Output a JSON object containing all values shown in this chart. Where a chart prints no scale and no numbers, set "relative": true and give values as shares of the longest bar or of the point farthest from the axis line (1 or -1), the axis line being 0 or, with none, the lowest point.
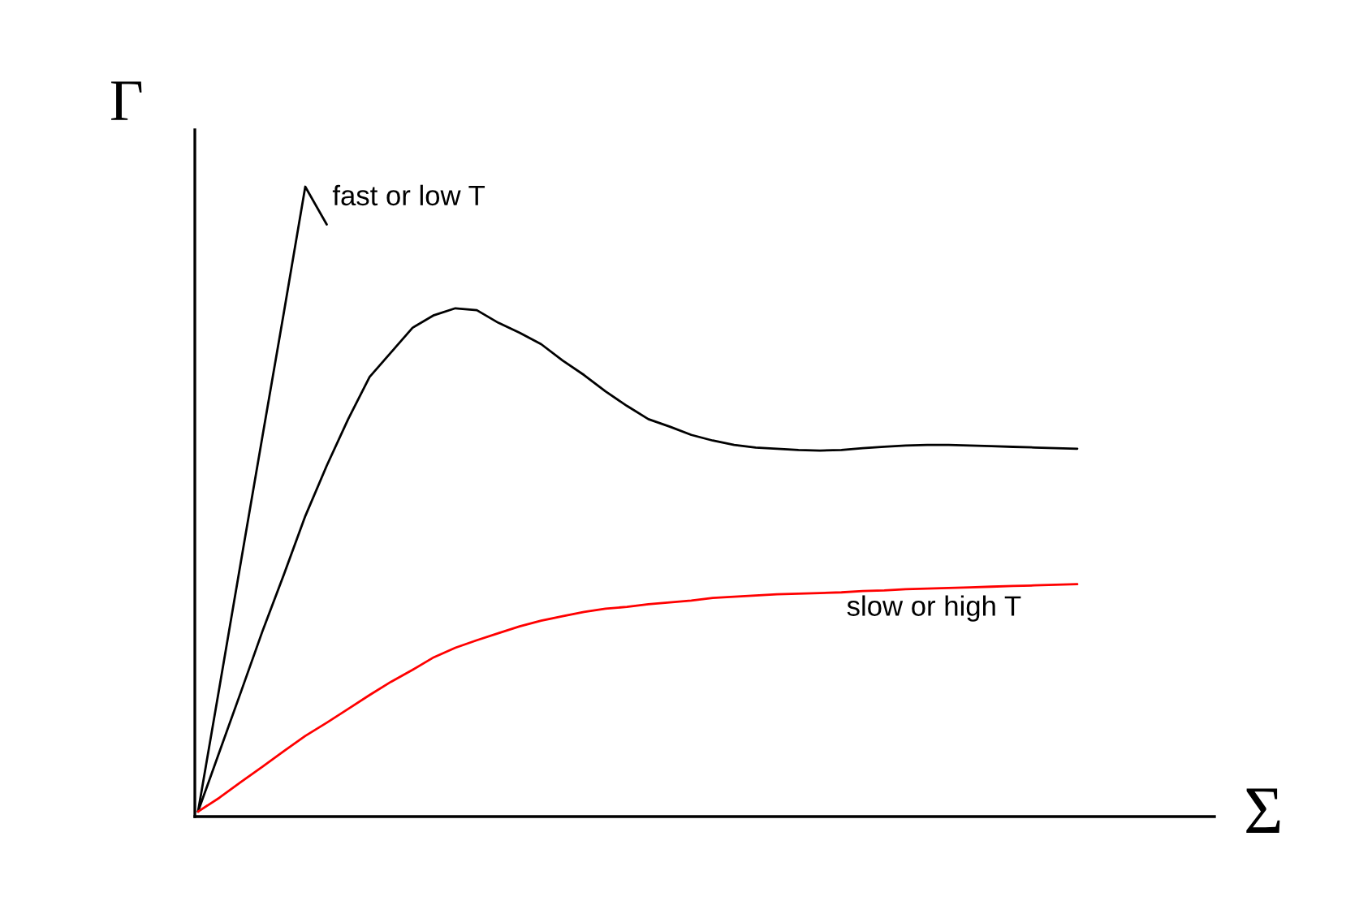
{
  "chart_data": {
    "type": "line",
    "relative": true,
    "xlabel": "Σ",
    "ylabel": "Γ",
    "categories": [
      null,
      null,
      null,
      null,
      null,
      null,
      null,
      null,
      null,
      null,
      null,
      null,
      null,
      null,
      null,
      null,
      null,
      null,
      null,
      null,
      null,
      null,
      null,
      null,
      null,
      null,
      null,
      null,
      null,
      null,
      null,
      null,
      null,
      null,
      null,
      null,
      null,
      null,
      null,
      null,
      null,
      null
    ],
    "series": [
      {
        "name": "fast or low T",
        "color": "#000000",
        "values": [
          0.008,
          0.206,
          0.405,
          0.603,
          0.8,
          1.0,
          0.94,
          null,
          null,
          null,
          null,
          null,
          null,
          null,
          null,
          null,
          null,
          null,
          null,
          null,
          null,
          null,
          null,
          null,
          null,
          null,
          null,
          null,
          null,
          null,
          null,
          null,
          null,
          null,
          null,
          null,
          null,
          null,
          null,
          null,
          null,
          null
        ]
      },
      {
        "color": "#000000",
        "values": [
          0.008,
          0.103,
          0.198,
          0.294,
          0.384,
          0.477,
          0.557,
          0.631,
          0.698,
          0.737,
          0.776,
          0.796,
          0.807,
          0.804,
          0.784,
          0.768,
          0.75,
          0.724,
          0.701,
          0.675,
          0.652,
          0.631,
          0.619,
          0.606,
          0.597,
          0.59,
          0.586,
          0.584,
          0.582,
          0.581,
          0.582,
          0.585,
          0.587,
          0.589,
          0.59,
          0.59,
          0.589,
          0.588,
          0.587,
          0.586,
          0.585,
          0.584
        ]
      },
      {
        "name": "slow or high T",
        "color": "#ff0000",
        "values": [
          0.008,
          0.03,
          0.055,
          0.079,
          0.104,
          0.128,
          0.149,
          0.171,
          0.193,
          0.214,
          0.233,
          0.253,
          0.268,
          0.28,
          0.291,
          0.302,
          0.311,
          0.318,
          0.325,
          0.33,
          0.333,
          0.337,
          0.34,
          0.343,
          0.347,
          0.349,
          0.351,
          0.353,
          0.354,
          0.355,
          0.356,
          0.358,
          0.359,
          0.361,
          0.362,
          0.363,
          0.364,
          0.365,
          0.366,
          0.367,
          0.368,
          0.369
        ]
      }
    ]
  }
}
